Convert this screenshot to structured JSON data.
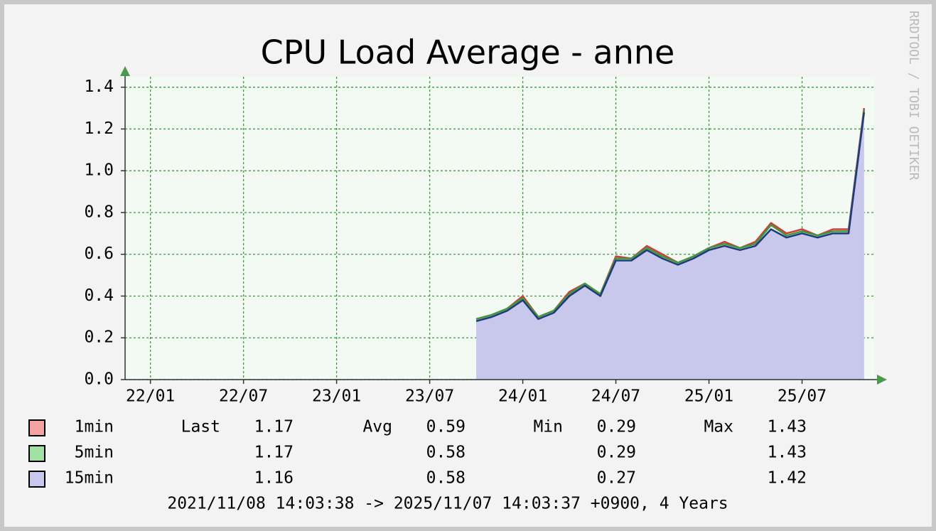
{
  "chart_data": {
    "type": "line",
    "title": "CPU Load Average - anne",
    "watermark": "RRDTOOL / TOBI OETIKER",
    "footer": "2021/11/08 14:03:38 -> 2025/11/07 14:03:37 +0900, 4 Years",
    "x": [
      "23/10",
      "23/11",
      "23/12",
      "24/01",
      "24/02",
      "24/03",
      "24/04",
      "24/05",
      "24/06",
      "24/07",
      "24/08",
      "24/09",
      "24/10",
      "24/11",
      "24/12",
      "25/01",
      "25/02",
      "25/03",
      "25/04",
      "25/05",
      "25/06",
      "25/07",
      "25/08",
      "25/09",
      "25/10",
      "25/11"
    ],
    "xlim": [
      "21/11",
      "25/11"
    ],
    "xticks": [
      "22/01",
      "22/07",
      "23/01",
      "23/07",
      "24/01",
      "24/07",
      "25/01",
      "25/07"
    ],
    "ylim": [
      0,
      1.45
    ],
    "yticks": [
      {
        "value": 0,
        "label": "0.0"
      },
      0.2,
      0.4,
      0.6,
      0.8,
      {
        "value": 1,
        "label": "1.0"
      },
      1.2,
      1.4
    ],
    "grid": true,
    "stat_labels": [
      "Last",
      "Avg",
      "Min",
      "Max"
    ],
    "series": [
      {
        "name": "1min",
        "color": "#d03c3c",
        "swatch": "#f4a3a3",
        "values": [
          0.29,
          0.31,
          0.34,
          0.4,
          0.3,
          0.33,
          0.42,
          0.46,
          0.41,
          0.59,
          0.58,
          0.64,
          0.6,
          0.56,
          0.59,
          0.63,
          0.66,
          0.63,
          0.66,
          0.75,
          0.7,
          0.72,
          0.69,
          0.72,
          0.72,
          1.3
        ],
        "stats": {
          "last": 1.17,
          "avg": 0.59,
          "min": 0.29,
          "max": 1.43
        }
      },
      {
        "name": "5min",
        "color": "#3c9a3c",
        "swatch": "#a3e0a3",
        "values": [
          0.29,
          0.31,
          0.34,
          0.39,
          0.3,
          0.33,
          0.41,
          0.46,
          0.41,
          0.58,
          0.58,
          0.63,
          0.59,
          0.56,
          0.59,
          0.63,
          0.65,
          0.63,
          0.65,
          0.74,
          0.69,
          0.71,
          0.69,
          0.71,
          0.71,
          1.29
        ],
        "stats": {
          "last": 1.17,
          "avg": 0.58,
          "min": 0.29,
          "max": 1.43
        }
      },
      {
        "name": "15min",
        "color": "#1f3a7c",
        "swatch": "#c8c8ee",
        "fill": "#c8c8ec",
        "values": [
          0.28,
          0.3,
          0.33,
          0.38,
          0.29,
          0.32,
          0.4,
          0.45,
          0.4,
          0.57,
          0.57,
          0.62,
          0.58,
          0.55,
          0.58,
          0.62,
          0.64,
          0.62,
          0.64,
          0.72,
          0.68,
          0.7,
          0.68,
          0.7,
          0.7,
          1.28
        ],
        "stats": {
          "last": 1.16,
          "avg": 0.58,
          "min": 0.27,
          "max": 1.42
        }
      }
    ]
  }
}
